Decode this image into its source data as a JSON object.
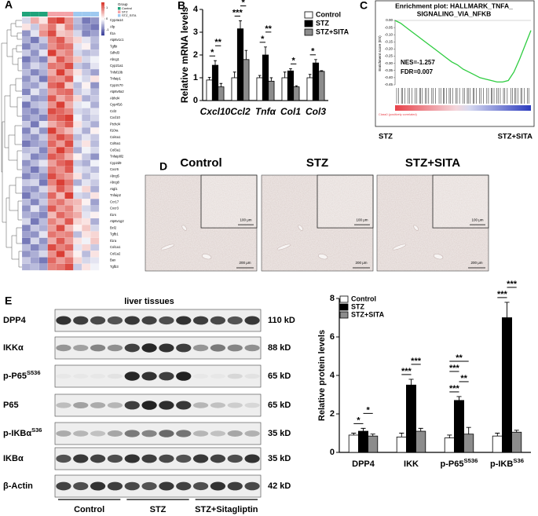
{
  "panel_letters": [
    "A",
    "B",
    "C",
    "D",
    "E"
  ],
  "chart_data": [
    {
      "type": "heatmap",
      "groups": [
        {
          "name": "Control",
          "color": "#1fa37a"
        },
        {
          "name": "STZ",
          "color": "#f4a3a8"
        },
        {
          "name": "STZ_SITA",
          "color": "#9ec9f0"
        }
      ],
      "group_title": "Group",
      "column_group": [
        0,
        0,
        0,
        1,
        1,
        1,
        2,
        2,
        2
      ],
      "clim": [
        -1.5,
        1.5
      ],
      "cticks": [
        -1,
        0,
        1
      ],
      "rows": [
        "Cyp4a14",
        "Afp",
        "Il1a",
        "Atp6v1c1",
        "Tgfbi",
        "Sdhd3",
        "Abcg1",
        "Cyp21a1",
        "Tnfsf10b",
        "Tnfaip1",
        "Cyp2c70",
        "Atp6v0a2",
        "Abhd4",
        "Cyp4f16",
        "Ccl2",
        "Cxcl10",
        "Ptchd4",
        "Il10ra",
        "Col4a1",
        "Col5a1",
        "Col3a1",
        "Tnfaip8l2",
        "Cyp2d9",
        "Cxcr6",
        "Abcg5",
        "Abcg8",
        "Atgl1",
        "Tnfaip2",
        "Ccr17",
        "Cxcr3",
        "Il1rs",
        "Atp6v1g2",
        "Bcl2",
        "Tgfb1",
        "Il1ra",
        "Col1a1",
        "Col1a2",
        "Bax",
        "Tgfb3"
      ],
      "values": [
        [
          -0.3,
          0.6,
          0.2,
          1.2,
          1.4,
          0.8,
          -0.5,
          -1.0,
          -0.8
        ],
        [
          0.2,
          -0.4,
          0.6,
          1.0,
          0.3,
          0.9,
          -0.6,
          -0.8,
          -1.0
        ],
        [
          -0.8,
          -0.2,
          0.8,
          1.3,
          0.4,
          0.5,
          -0.3,
          -0.9,
          -0.7
        ],
        [
          -0.6,
          -1.0,
          -0.4,
          0.9,
          1.2,
          0.6,
          0.3,
          -0.2,
          -0.5
        ],
        [
          -0.9,
          -0.5,
          -0.7,
          0.8,
          1.1,
          1.0,
          -0.2,
          0.1,
          -0.6
        ],
        [
          -0.4,
          -0.8,
          -0.2,
          1.4,
          0.7,
          0.9,
          -0.3,
          -0.5,
          -0.4
        ],
        [
          -1.0,
          -0.6,
          -0.9,
          0.5,
          1.2,
          0.8,
          0.4,
          -0.3,
          -0.1
        ],
        [
          -0.7,
          -0.3,
          -0.5,
          1.0,
          0.9,
          1.3,
          -0.4,
          -0.6,
          -0.2
        ],
        [
          -0.5,
          -0.9,
          -0.6,
          0.6,
          1.4,
          0.7,
          0.2,
          -0.4,
          -0.7
        ],
        [
          -0.8,
          -0.4,
          -1.0,
          0.9,
          0.8,
          1.2,
          -0.1,
          -0.3,
          0.2
        ],
        [
          -0.6,
          -0.7,
          -0.3,
          1.1,
          1.3,
          0.4,
          -0.5,
          0.1,
          -0.8
        ],
        [
          -0.9,
          -0.2,
          -0.6,
          0.7,
          1.0,
          1.1,
          -0.4,
          -0.2,
          -0.5
        ],
        [
          -0.3,
          -0.8,
          -0.7,
          1.2,
          0.6,
          0.9,
          0.3,
          -0.6,
          -0.4
        ],
        [
          -1.0,
          -0.5,
          -0.4,
          0.8,
          1.4,
          0.6,
          -0.2,
          -0.1,
          -0.6
        ],
        [
          -0.7,
          -0.9,
          -0.5,
          1.3,
          1.1,
          0.9,
          -0.3,
          -0.4,
          -0.2
        ],
        [
          -0.8,
          -0.6,
          -0.9,
          1.0,
          1.2,
          1.4,
          -0.1,
          -0.5,
          -0.3
        ],
        [
          -0.4,
          -1.0,
          -0.2,
          0.6,
          0.9,
          1.2,
          0.2,
          -0.3,
          -0.6
        ],
        [
          -0.9,
          -0.3,
          -0.8,
          1.4,
          0.8,
          0.5,
          -0.2,
          -0.6,
          0.1
        ],
        [
          -0.6,
          -0.8,
          -0.4,
          0.9,
          1.3,
          1.0,
          -0.5,
          -0.2,
          -0.4
        ],
        [
          -1.0,
          -0.7,
          -0.6,
          1.1,
          0.7,
          1.3,
          -0.3,
          0.2,
          -0.5
        ],
        [
          -0.5,
          -0.4,
          -0.9,
          0.8,
          1.4,
          0.9,
          -0.6,
          -0.1,
          -0.3
        ],
        [
          -0.3,
          -0.9,
          -0.7,
          1.2,
          1.0,
          0.6,
          0.1,
          -0.4,
          -0.8
        ],
        [
          -0.8,
          -0.5,
          -0.2,
          0.7,
          1.1,
          1.3,
          -0.4,
          -0.6,
          -0.1
        ],
        [
          -0.6,
          -1.0,
          -0.5,
          1.0,
          0.8,
          1.2,
          -0.2,
          -0.3,
          -0.5
        ],
        [
          -0.9,
          -0.6,
          -0.8,
          1.3,
          0.9,
          0.7,
          0.2,
          -0.5,
          -0.2
        ],
        [
          -0.4,
          -0.3,
          -1.0,
          0.9,
          1.4,
          1.0,
          -0.6,
          -0.2,
          -0.4
        ],
        [
          -0.7,
          -0.8,
          -0.3,
          0.6,
          1.2,
          0.8,
          -0.1,
          0.3,
          -0.6
        ],
        [
          -1.0,
          -0.5,
          -0.6,
          1.1,
          0.5,
          1.4,
          -0.3,
          -0.4,
          0.2
        ],
        [
          -0.5,
          -0.9,
          -0.4,
          0.8,
          1.0,
          0.6,
          0.5,
          0.1,
          -0.7
        ],
        [
          -0.8,
          -0.2,
          -0.7,
          1.2,
          0.7,
          0.9,
          0.4,
          -0.3,
          -0.5
        ],
        [
          -0.6,
          -0.7,
          -0.9,
          0.5,
          1.1,
          0.8,
          0.6,
          -0.2,
          0.1
        ],
        [
          -0.3,
          -1.0,
          -0.5,
          0.9,
          0.6,
          1.2,
          0.3,
          0.2,
          -0.6
        ],
        [
          -0.9,
          -0.4,
          -0.6,
          0.7,
          1.3,
          0.5,
          0.1,
          0.4,
          -0.3
        ],
        [
          -0.7,
          -0.8,
          -0.2,
          1.0,
          0.8,
          0.9,
          -0.5,
          0.2,
          0.3
        ],
        [
          -1.0,
          -0.3,
          -0.8,
          0.6,
          1.2,
          0.7,
          0.2,
          -0.1,
          0.4
        ],
        [
          -0.5,
          -0.9,
          -0.6,
          1.3,
          0.9,
          1.1,
          -0.2,
          0.3,
          -0.4
        ],
        [
          -0.8,
          -0.6,
          -0.3,
          0.8,
          1.4,
          0.6,
          0.1,
          -0.5,
          0.2
        ],
        [
          -0.4,
          -0.7,
          -1.0,
          1.1,
          0.7,
          1.0,
          0.3,
          -0.3,
          -0.2
        ],
        [
          -0.6,
          -0.5,
          -0.7,
          0.9,
          1.0,
          1.3,
          -0.4,
          0.2,
          -0.1
        ]
      ]
    },
    {
      "type": "bar",
      "ylabel": "Relative mRNA levels",
      "categories": [
        "Cxcl10",
        "Ccl2",
        "Tnfα",
        "Col1",
        "Col3"
      ],
      "series": [
        {
          "name": "Control",
          "color": "#ffffff",
          "values": [
            0.9,
            1.0,
            1.0,
            1.0,
            1.0
          ],
          "errors": [
            0.12,
            0.25,
            0.1,
            0.25,
            0.15
          ]
        },
        {
          "name": "STZ",
          "color": "#000000",
          "values": [
            1.55,
            3.15,
            2.0,
            1.3,
            1.65
          ],
          "errors": [
            0.2,
            0.35,
            0.35,
            0.1,
            0.15
          ]
        },
        {
          "name": "STZ+SITA",
          "color": "#8c8c8c",
          "values": [
            0.6,
            1.8,
            0.85,
            0.6,
            1.28
          ],
          "errors": [
            0.15,
            0.4,
            0.15,
            0.05,
            0.03
          ]
        }
      ],
      "ylim": [
        0,
        4
      ],
      "yticks": [
        0,
        1,
        2,
        3,
        4
      ],
      "significance": [
        {
          "category": 0,
          "pair": [
            0,
            1
          ],
          "label": "*"
        },
        {
          "category": 0,
          "pair": [
            1,
            2
          ],
          "label": "**"
        },
        {
          "category": 1,
          "pair": [
            0,
            1
          ],
          "label": "***"
        },
        {
          "category": 1,
          "pair": [
            1,
            2
          ],
          "label": "*"
        },
        {
          "category": 2,
          "pair": [
            0,
            1
          ],
          "label": "*"
        },
        {
          "category": 2,
          "pair": [
            1,
            2
          ],
          "label": "**"
        },
        {
          "category": 3,
          "pair": [
            1,
            2
          ],
          "label": "*"
        },
        {
          "category": 4,
          "pair": [
            0,
            1
          ],
          "label": "*"
        }
      ]
    },
    {
      "type": "gsea",
      "title_lines": [
        "Enrichment plot: HALLMARK_TNFA_",
        "SIGNALING_VIA_NFKB"
      ],
      "ylabel": "Enrichment score (ES)",
      "values": [
        0,
        -0.02,
        -0.05,
        -0.08,
        -0.11,
        -0.14,
        -0.17,
        -0.2,
        -0.23,
        -0.26,
        -0.29,
        -0.31,
        -0.34,
        -0.36,
        -0.38,
        -0.4,
        -0.41,
        -0.42,
        -0.43,
        -0.43,
        -0.42,
        -0.36,
        -0.27,
        -0.17,
        -0.07
      ],
      "ylim": [
        -0.45,
        0
      ],
      "yticks": [
        {
          "value": 0,
          "label": "0.00"
        },
        {
          "value": -0.05,
          "label": "-0.05"
        },
        {
          "value": -0.1,
          "label": "-0.10"
        },
        {
          "value": -0.15,
          "label": "-0.15"
        },
        {
          "value": -0.2,
          "label": "-0.20"
        },
        {
          "value": -0.25,
          "label": "-0.25"
        },
        {
          "value": -0.3,
          "label": "-0.30"
        },
        {
          "value": -0.35,
          "label": "-0.35"
        },
        {
          "value": -0.4,
          "label": "-0.40"
        },
        {
          "value": -0.45,
          "label": "-0.45"
        }
      ],
      "color": "#2ecc40",
      "nes": "NES=-1.257",
      "fdr": "FDR=0.007",
      "class_label": "Class0 (positively correlated)",
      "left_group": "STZ",
      "right_group": "STZ+SITA"
    },
    {
      "type": "bar",
      "ylabel": "Relative protein levels",
      "categories": [
        "DPP4",
        "IKK",
        "p-P65",
        "p-IKB"
      ],
      "category_superscripts": [
        null,
        null,
        "S536",
        "S36"
      ],
      "series": [
        {
          "name": "Control",
          "color": "#ffffff",
          "values": [
            0.9,
            0.8,
            0.75,
            0.85
          ],
          "errors": [
            0.1,
            0.2,
            0.15,
            0.15
          ]
        },
        {
          "name": "STZ",
          "color": "#000000",
          "values": [
            1.1,
            3.5,
            2.7,
            7.0
          ],
          "errors": [
            0.15,
            0.3,
            0.2,
            0.8
          ]
        },
        {
          "name": "STZ+SITA",
          "color": "#8c8c8c",
          "values": [
            0.85,
            1.1,
            0.95,
            1.05
          ],
          "errors": [
            0.1,
            0.15,
            0.35,
            0.1
          ]
        }
      ],
      "ylim": [
        0,
        8
      ],
      "yticks": [
        0,
        2,
        4,
        6,
        8
      ],
      "significance": [
        {
          "category": 0,
          "pair": [
            0,
            1
          ],
          "label": "*"
        },
        {
          "category": 0,
          "pair": [
            1,
            2
          ],
          "label": "*"
        },
        {
          "category": 1,
          "pair": [
            0,
            1
          ],
          "label": "***"
        },
        {
          "category": 1,
          "pair": [
            1,
            2
          ],
          "label": "***"
        },
        {
          "category": 2,
          "pair": [
            0,
            1
          ],
          "label": "***"
        },
        {
          "category": 2,
          "pair": [
            1,
            2
          ],
          "label": "**"
        },
        {
          "category": 2,
          "pair": [
            0,
            1
          ],
          "label": "***"
        },
        {
          "category": 2,
          "pair": [
            0,
            2
          ],
          "label": "**"
        },
        {
          "category": 3,
          "pair": [
            0,
            1
          ],
          "label": "***"
        },
        {
          "category": 3,
          "pair": [
            1,
            2
          ],
          "label": "***"
        }
      ]
    }
  ],
  "micrographs": {
    "panels": [
      {
        "title": "Control"
      },
      {
        "title": "STZ"
      },
      {
        "title": "STZ+SITA"
      }
    ],
    "inset_scale": "100 μm",
    "scale": "200 μm"
  },
  "blots": {
    "title": "liver tissues",
    "rows": [
      {
        "label": "DPP4",
        "size": "110 kD"
      },
      {
        "label": "IKKα",
        "size": "88 kD"
      },
      {
        "label": "p-P65",
        "sup": "S536",
        "size": "65 kD"
      },
      {
        "label": "P65",
        "size": "65 kD"
      },
      {
        "label": "p-IKBα",
        "sup": "S36",
        "size": "35 kD"
      },
      {
        "label": "IKBα",
        "size": "35 kD"
      },
      {
        "label": "β-Actin",
        "size": "42 kD"
      }
    ],
    "groups": [
      "Control",
      "STZ",
      "STZ+Sitagliptin"
    ]
  }
}
